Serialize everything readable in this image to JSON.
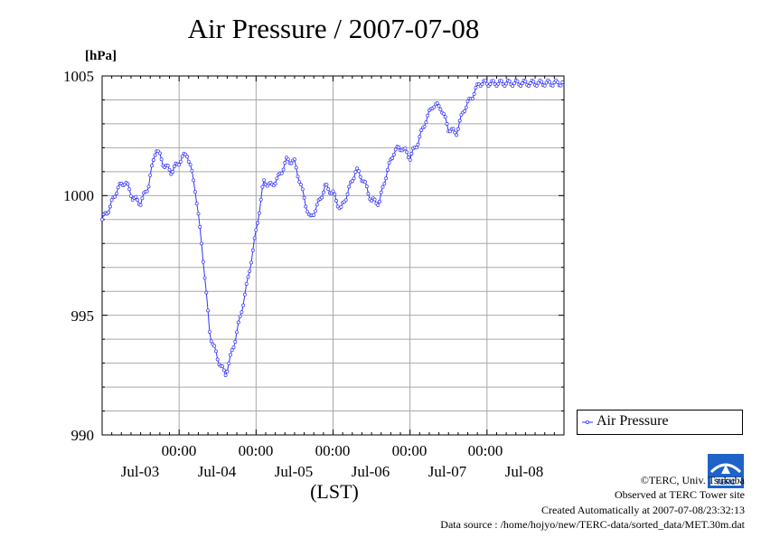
{
  "chart_data": {
    "type": "line",
    "title": "Air Pressure / 2007-07-08",
    "ylabel": "[hPa]",
    "xlabel": "(LST)",
    "ylim": [
      990,
      1005
    ],
    "yticks": [
      "1005",
      "1000",
      "995",
      "990"
    ],
    "ytick_values": [
      1005,
      1000,
      995,
      990
    ],
    "xlim_days": [
      0,
      6
    ],
    "xtick_times": [
      "00:00",
      "00:00",
      "00:00",
      "00:00",
      "00:00"
    ],
    "xtick_dates": [
      "Jul-03",
      "Jul-04",
      "Jul-05",
      "Jul-06",
      "Jul-07",
      "Jul-08"
    ],
    "legend": "Air Pressure",
    "legend_position": "bottom-right",
    "grid": true,
    "series": [
      {
        "name": "Air Pressure",
        "color": "#3333ff",
        "x_days": [
          0.0,
          0.1,
          0.2,
          0.3,
          0.4,
          0.5,
          0.6,
          0.7,
          0.8,
          0.9,
          1.0,
          1.1,
          1.2,
          1.3,
          1.4,
          1.5,
          1.6,
          1.7,
          1.8,
          1.9,
          2.0,
          2.1,
          2.2,
          2.3,
          2.4,
          2.5,
          2.6,
          2.7,
          2.8,
          2.9,
          3.0,
          3.1,
          3.2,
          3.3,
          3.4,
          3.5,
          3.6,
          3.7,
          3.8,
          3.9,
          4.0,
          4.1,
          4.2,
          4.3,
          4.4,
          4.5,
          4.6,
          4.7,
          4.8,
          4.9,
          5.0,
          5.1,
          5.2,
          5.3,
          5.4,
          5.5,
          5.6,
          5.7,
          5.8,
          5.9,
          5.98
        ],
        "values": [
          999.0,
          999.5,
          1000.3,
          1000.6,
          999.9,
          999.7,
          1000.4,
          1002.0,
          1001.3,
          1001.0,
          1001.4,
          1001.8,
          1000.5,
          997.8,
          994.2,
          993.2,
          992.5,
          993.6,
          995.0,
          996.6,
          998.5,
          1000.6,
          1000.4,
          1000.8,
          1001.5,
          1001.4,
          1000.2,
          999.0,
          999.6,
          1000.4,
          1000.1,
          999.4,
          1000.2,
          1001.1,
          1000.6,
          999.8,
          999.7,
          1001.0,
          1001.9,
          1002.0,
          1001.6,
          1002.2,
          1003.1,
          1003.8,
          1003.7,
          1002.8,
          1002.6,
          1003.6,
          1004.1,
          1004.7,
          1004.7,
          1004.7,
          1004.7,
          1004.7,
          1004.7,
          1004.7,
          1004.7,
          1004.7,
          1004.7,
          1004.7,
          1004.7
        ]
      }
    ]
  },
  "footer": {
    "credit": "©TERC, Univ. Tsukuba",
    "site": "Observed at TERC Tower site",
    "created": "Created Automatically at 2007-07-08/23:32:13",
    "source": "Data source : /home/hojyo/new/TERC-data/sorted_data/MET.30m.dat"
  },
  "logo": {
    "text": "TERC"
  }
}
